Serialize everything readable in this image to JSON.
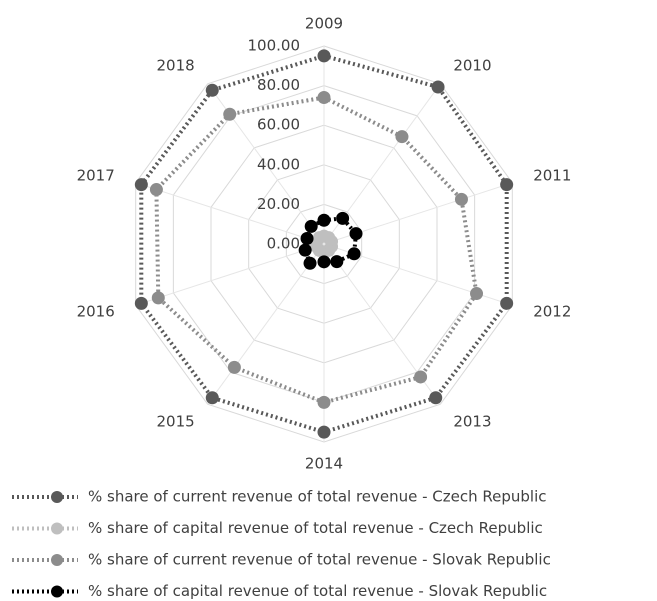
{
  "chart_data": {
    "type": "radar",
    "categories": [
      "2009",
      "2010",
      "2011",
      "2012",
      "2013",
      "2014",
      "2015",
      "2016",
      "2017",
      "2018"
    ],
    "ylim": [
      0,
      100
    ],
    "yticks": [
      {
        "value": 0,
        "label": "0.00"
      },
      {
        "value": 20,
        "label": "20.00"
      },
      {
        "value": 40,
        "label": "40.00"
      },
      {
        "value": 60,
        "label": "60.00"
      },
      {
        "value": 80,
        "label": "80.00"
      },
      {
        "value": 100,
        "label": "100.00"
      }
    ],
    "grid": true,
    "legend": "bottom",
    "series": [
      {
        "name": "% share of current revenue of total revenue - Czech Republic",
        "color": "#595959",
        "values": [
          95,
          98,
          97,
          97,
          96,
          95,
          96,
          97,
          97,
          96
        ]
      },
      {
        "name": "% share of capital revenue of total revenue - Czech Republic",
        "color": "#bfbfbf",
        "values": [
          4,
          4,
          4,
          4,
          4,
          4,
          4,
          4,
          4,
          4
        ]
      },
      {
        "name": "% share of current revenue of total revenue - Slovak Republic",
        "color": "#8c8c8c",
        "values": [
          74,
          67,
          73,
          81,
          83,
          80,
          77,
          88,
          89,
          81
        ]
      },
      {
        "name": "% share of capital revenue of total revenue - Slovak Republic",
        "color": "#000000",
        "values": [
          12,
          16,
          17,
          16,
          11,
          9,
          12,
          10,
          9,
          11
        ]
      }
    ]
  }
}
